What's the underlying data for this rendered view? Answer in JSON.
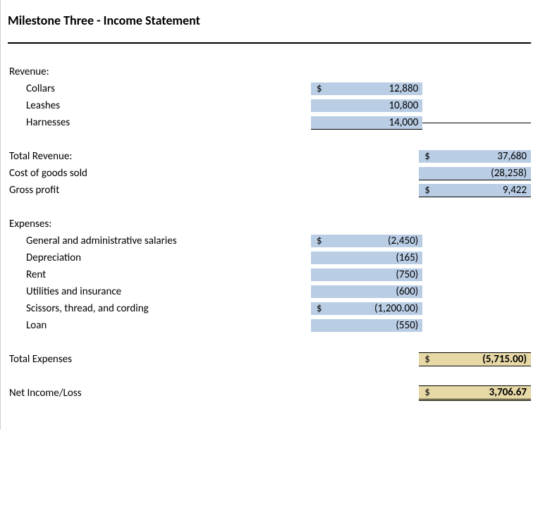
{
  "title": "Milestone Three - Income Statement",
  "revenue": {
    "header": "Revenue:",
    "items": [
      {
        "label": "Collars",
        "sym": "$",
        "value": "12,880"
      },
      {
        "label": "Leashes",
        "sym": "",
        "value": "10,800"
      },
      {
        "label": "Harnesses",
        "sym": "",
        "value": "14,000"
      }
    ]
  },
  "total_revenue": {
    "label": "Total Revenue:",
    "sym": "$",
    "value": "37,680"
  },
  "cogs": {
    "label": "Cost of goods sold",
    "sym": "",
    "value": "(28,258)"
  },
  "gross_profit": {
    "label": "Gross profit",
    "sym": "$",
    "value": "9,422"
  },
  "expenses": {
    "header": "Expenses:",
    "items": [
      {
        "label": "General and administrative salaries",
        "sym": "$",
        "value": "(2,450)"
      },
      {
        "label": "Depreciation",
        "sym": "",
        "value": "(165)"
      },
      {
        "label": "Rent",
        "sym": "",
        "value": "(750)"
      },
      {
        "label": "Utilities and insurance",
        "sym": "",
        "value": "(600)"
      },
      {
        "label": "Scissors, thread, and cording",
        "sym": "$",
        "value": "(1,200.00)"
      },
      {
        "label": "Loan",
        "sym": "",
        "value": "(550)"
      }
    ]
  },
  "total_expenses": {
    "label": "Total Expenses",
    "sym": "$",
    "value": "(5,715.00)"
  },
  "net_income": {
    "label": "Net Income/Loss",
    "sym": "$",
    "value": "3,706.67"
  },
  "colors": {
    "blue": "#b9cde5",
    "tan": "#e6d9a6"
  }
}
